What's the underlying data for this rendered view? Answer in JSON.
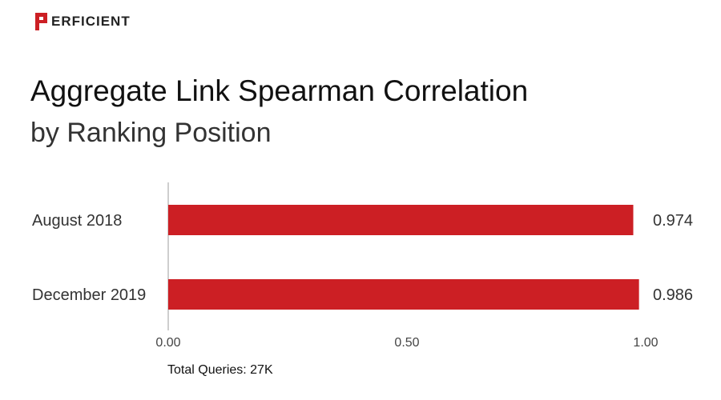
{
  "brand": {
    "name": "ERFICIENT",
    "logo_letter": "P",
    "color": "#cc1f24"
  },
  "chart_data": {
    "type": "bar",
    "orientation": "horizontal",
    "title": "Aggregate Link Spearman Correlation",
    "subtitle": "by Ranking Position",
    "categories": [
      "August 2018",
      "December 2019"
    ],
    "values": [
      0.974,
      0.986
    ],
    "value_labels": [
      "0.974",
      "0.986"
    ],
    "xlim": [
      0,
      1
    ],
    "x_ticks": [
      "0.00",
      "0.50",
      "1.00"
    ],
    "bar_color": "#cc1f24",
    "grid": false,
    "legend": "none",
    "footnote": "Total Queries: 27K"
  }
}
